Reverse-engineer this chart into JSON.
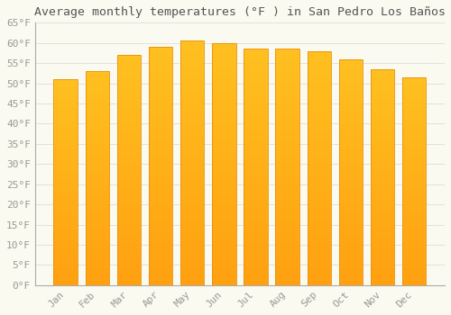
{
  "title": "Average monthly temperatures (°F ) in San Pedro Los Baños",
  "months": [
    "Jan",
    "Feb",
    "Mar",
    "Apr",
    "May",
    "Jun",
    "Jul",
    "Aug",
    "Sep",
    "Oct",
    "Nov",
    "Dec"
  ],
  "values": [
    51,
    53,
    57,
    59,
    60.5,
    60,
    58.5,
    58.5,
    58,
    56,
    53.5,
    51.5
  ],
  "bar_color_top": "#FFC020",
  "bar_color_bottom": "#FFA010",
  "background_color": "#FAFAF0",
  "grid_color": "#DDDDDD",
  "text_color": "#999999",
  "title_color": "#555555",
  "ylim": [
    0,
    65
  ],
  "yticks": [
    0,
    5,
    10,
    15,
    20,
    25,
    30,
    35,
    40,
    45,
    50,
    55,
    60,
    65
  ],
  "title_fontsize": 9.5,
  "tick_fontsize": 8,
  "figsize": [
    5.0,
    3.5
  ],
  "dpi": 100
}
